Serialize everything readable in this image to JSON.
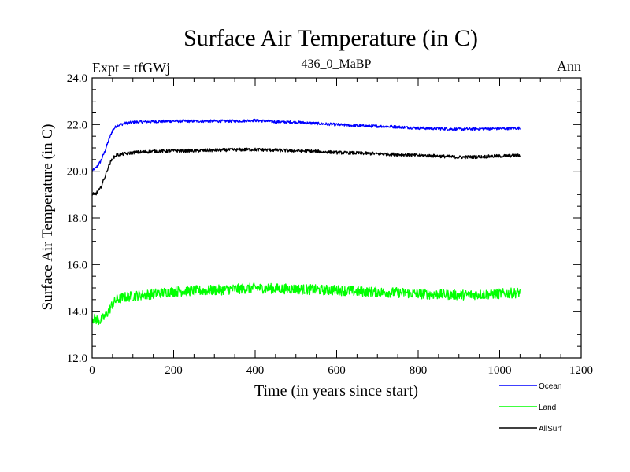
{
  "chart_data": {
    "type": "line",
    "title": "Surface Air Temperature (in C)",
    "subtitle": "436_0_MaBP",
    "left_label": "Expt = tfGWj",
    "right_label": "Ann",
    "xlabel": "Time (in years since start)",
    "ylabel": "Surface Air Temperature (in C)",
    "xlim": [
      0,
      1200
    ],
    "ylim": [
      12,
      24
    ],
    "xticks": [
      0,
      200,
      400,
      600,
      800,
      1000,
      1200
    ],
    "xtick_labels": [
      "0",
      "200",
      "400",
      "600",
      "800",
      "1000",
      "1200"
    ],
    "yticks": [
      12,
      14,
      16,
      18,
      20,
      22,
      24
    ],
    "ytick_labels": [
      "12.0",
      "14.0",
      "16.0",
      "18.0",
      "20.0",
      "22.0",
      "24.0"
    ],
    "legend_position": "bottom-right",
    "series": [
      {
        "name": "Ocean",
        "color": "#0000ff",
        "noise": 0.06,
        "x": [
          0,
          10,
          20,
          30,
          40,
          50,
          60,
          80,
          100,
          150,
          200,
          250,
          300,
          350,
          400,
          450,
          500,
          550,
          600,
          650,
          700,
          750,
          800,
          850,
          900,
          950,
          1000,
          1050
        ],
        "y": [
          20.0,
          20.15,
          20.4,
          20.8,
          21.3,
          21.75,
          21.95,
          22.05,
          22.1,
          22.13,
          22.15,
          22.15,
          22.15,
          22.15,
          22.18,
          22.12,
          22.1,
          22.05,
          22.0,
          21.95,
          21.93,
          21.9,
          21.85,
          21.83,
          21.8,
          21.82,
          21.83,
          21.85
        ]
      },
      {
        "name": "Land",
        "color": "#00ff00",
        "noise": 0.22,
        "x": [
          0,
          10,
          20,
          30,
          40,
          50,
          60,
          80,
          100,
          150,
          200,
          250,
          300,
          350,
          400,
          450,
          500,
          550,
          600,
          650,
          700,
          750,
          800,
          850,
          900,
          950,
          1000,
          1050
        ],
        "y": [
          13.7,
          13.65,
          13.6,
          13.75,
          14.0,
          14.3,
          14.5,
          14.6,
          14.65,
          14.75,
          14.85,
          14.88,
          14.9,
          14.95,
          15.0,
          14.97,
          14.95,
          14.92,
          14.9,
          14.85,
          14.82,
          14.8,
          14.75,
          14.72,
          14.7,
          14.72,
          14.75,
          14.8
        ]
      },
      {
        "name": "AllSurf",
        "color": "#000000",
        "noise": 0.07,
        "x": [
          0,
          10,
          20,
          30,
          40,
          50,
          60,
          80,
          100,
          150,
          200,
          250,
          300,
          350,
          400,
          450,
          500,
          550,
          600,
          650,
          700,
          750,
          800,
          850,
          900,
          950,
          1000,
          1050
        ],
        "y": [
          19.0,
          19.05,
          19.25,
          19.7,
          20.2,
          20.55,
          20.7,
          20.75,
          20.8,
          20.85,
          20.88,
          20.88,
          20.9,
          20.92,
          20.93,
          20.9,
          20.88,
          20.85,
          20.8,
          20.78,
          20.75,
          20.72,
          20.68,
          20.65,
          20.6,
          20.62,
          20.65,
          20.68
        ]
      }
    ]
  }
}
